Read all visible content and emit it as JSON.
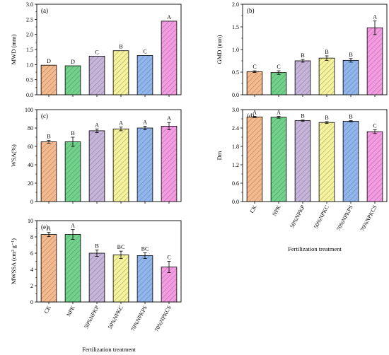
{
  "chart_data": [
    {
      "type": "bar",
      "panel": "(a)",
      "ylabel": "MWD (mm)",
      "categories": [
        "CK",
        "NPK",
        "50%NPKP",
        "50%NPKC",
        "70%NPKPS",
        "70%NPKCS"
      ],
      "values": [
        0.98,
        0.96,
        1.28,
        1.46,
        1.3,
        2.44
      ],
      "errors": [
        0,
        0,
        0,
        0,
        0,
        0
      ],
      "letters": [
        "D",
        "D",
        "C",
        "B",
        "C",
        "A"
      ],
      "ylim": [
        0,
        3.0
      ],
      "yticks": [
        "0.0",
        "0.5",
        "1.0",
        "1.5",
        "2.0",
        "2.5",
        "3.0"
      ],
      "show_categories": false,
      "xlabel": ""
    },
    {
      "type": "bar",
      "panel": "(b)",
      "ylabel": "GMD (mm)",
      "categories": [
        "CK",
        "NPK",
        "50%NPKP",
        "50%NPKC",
        "70%NPKPS",
        "70%NPKCS"
      ],
      "values": [
        0.51,
        0.49,
        0.75,
        0.81,
        0.76,
        1.48
      ],
      "errors": [
        0.02,
        0.04,
        0.03,
        0.05,
        0.04,
        0.15
      ],
      "letters": [
        "C",
        "C",
        "B",
        "B",
        "B",
        "A"
      ],
      "ylim": [
        0,
        2.0
      ],
      "yticks": [
        "0.0",
        "0.5",
        "1.0",
        "1.5",
        "2.0"
      ],
      "show_categories": false,
      "xlabel": ""
    },
    {
      "type": "bar",
      "panel": "(c)",
      "ylabel": "WSA(%)",
      "categories": [
        "CK",
        "NPK",
        "50%NPKP",
        "50%NPKC",
        "70%NPKPS",
        "70%NPKCS"
      ],
      "values": [
        65,
        65,
        77,
        79,
        80,
        82
      ],
      "errors": [
        1.5,
        5,
        2,
        2,
        2,
        4
      ],
      "letters": [
        "B",
        "B",
        "A",
        "A",
        "A",
        "A"
      ],
      "ylim": [
        0,
        100
      ],
      "yticks": [
        "0",
        "20",
        "40",
        "60",
        "80",
        "100"
      ],
      "show_categories": false,
      "xlabel": ""
    },
    {
      "type": "bar",
      "panel": "(d)",
      "ylabel": "Dm",
      "categories": [
        "CK",
        "NPK",
        "50%NPKP",
        "50%NPKC",
        "70%NPKPS",
        "70%NPKCS"
      ],
      "values": [
        2.76,
        2.75,
        2.64,
        2.58,
        2.62,
        2.28
      ],
      "errors": [
        0.02,
        0.03,
        0.02,
        0.03,
        0.02,
        0.06
      ],
      "letters": [
        "A",
        "A",
        "B",
        "B",
        "B",
        "C"
      ],
      "ylim": [
        0,
        3.0
      ],
      "yticks": [
        "0.0",
        "0.6",
        "1.2",
        "1.8",
        "2.4",
        "3.0"
      ],
      "show_categories": true,
      "xlabel": "Fertilization treatment"
    },
    {
      "type": "bar",
      "panel": "(e)",
      "ylabel": "MWSSA (cm² g⁻¹)",
      "categories": [
        "CK",
        "NPK",
        "50%NPKP",
        "50%NPKC",
        "70%NPKPS",
        "70%NPKCS"
      ],
      "values": [
        8.3,
        8.3,
        6.0,
        5.8,
        5.7,
        4.3
      ],
      "errors": [
        0.25,
        0.6,
        0.4,
        0.45,
        0.35,
        0.7
      ],
      "letters": [
        "A",
        "A",
        "B",
        "BC",
        "BC",
        "C"
      ],
      "ylim": [
        0,
        10
      ],
      "yticks": [
        "0",
        "2",
        "4",
        "6",
        "8",
        "10"
      ],
      "show_categories": true,
      "xlabel": "Fertilization treatment"
    }
  ],
  "style": {
    "bar_colors": [
      "#f6b98c",
      "#6fd38a",
      "#c7b4db",
      "#f6f39b",
      "#8fb6ee",
      "#f59ae3"
    ],
    "axis_color": "#000000"
  }
}
